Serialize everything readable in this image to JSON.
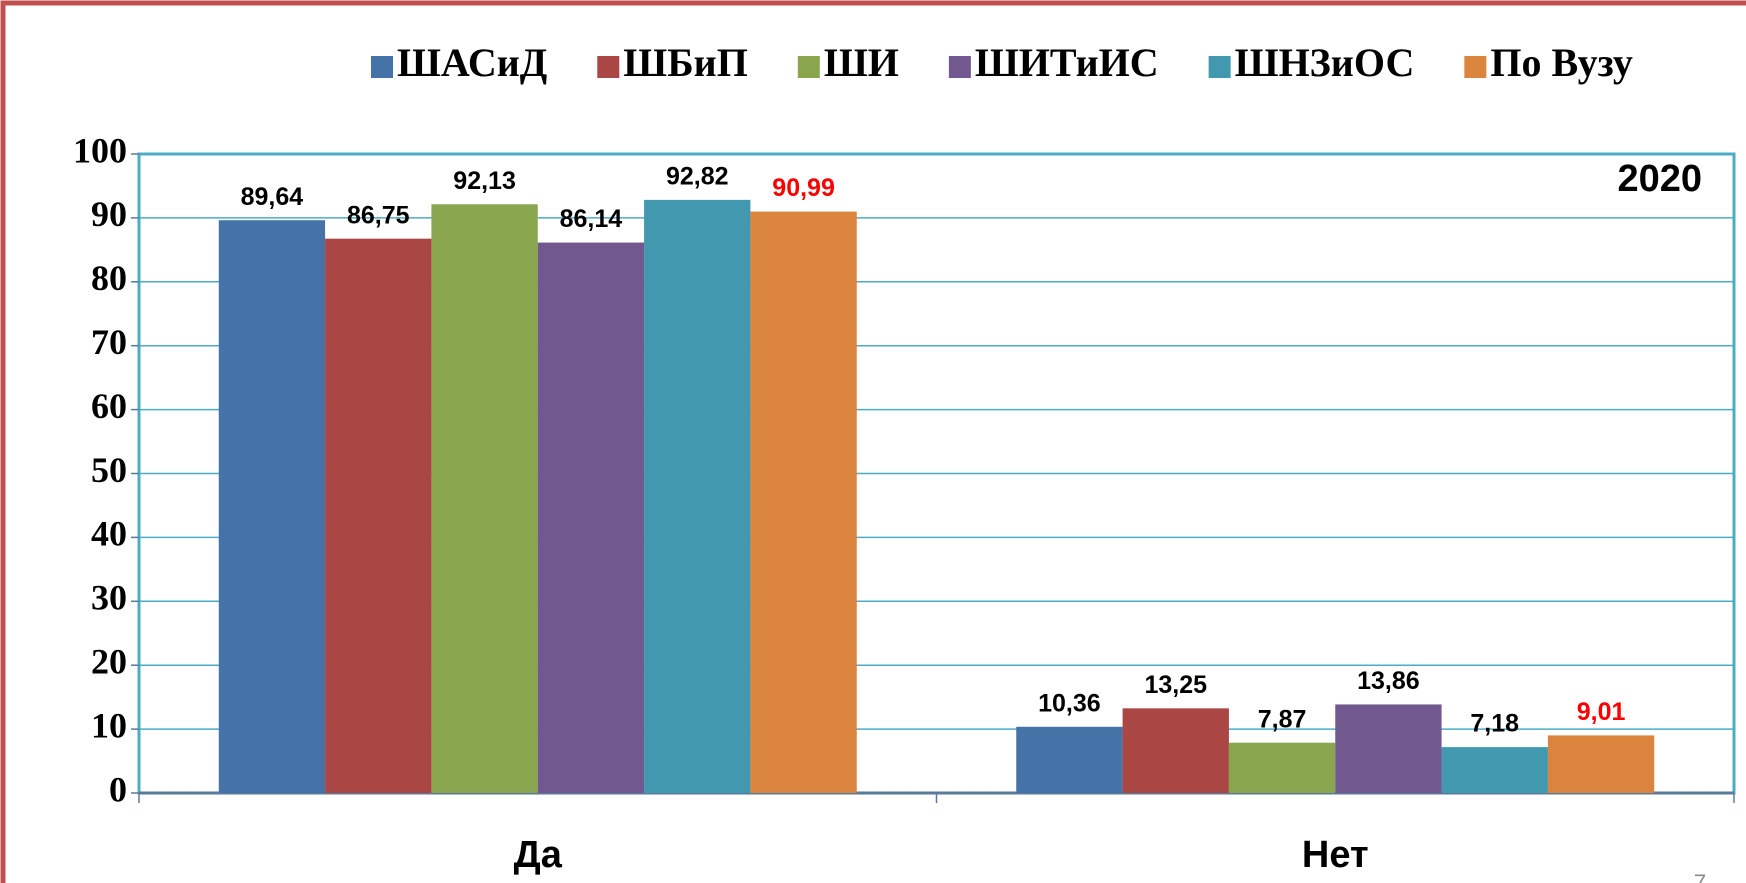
{
  "chart_data": {
    "type": "bar",
    "annotation": "2020",
    "page_number": "7",
    "categories": [
      "Да",
      "Нет"
    ],
    "series": [
      {
        "name": "ШАСиД",
        "color": "#4572a7",
        "values": [
          89.64,
          10.36
        ],
        "value_labels": [
          "89,64",
          "10,36"
        ]
      },
      {
        "name": "ШБиП",
        "color": "#aa4643",
        "values": [
          86.75,
          13.25
        ],
        "value_labels": [
          "86,75",
          "13,25"
        ]
      },
      {
        "name": "ШИ",
        "color": "#89a54e",
        "values": [
          92.13,
          7.87
        ],
        "value_labels": [
          "92,13",
          "7,87"
        ]
      },
      {
        "name": "ШИТиИС",
        "color": "#71588f",
        "values": [
          86.14,
          13.86
        ],
        "value_labels": [
          "86,14",
          "13,86"
        ]
      },
      {
        "name": "ШНЗиОС",
        "color": "#4198af",
        "values": [
          92.82,
          7.18
        ],
        "value_labels": [
          "92,82",
          "7,18"
        ]
      },
      {
        "name": "По Вузу",
        "color": "#db843d",
        "label_color": "#ff0000",
        "values": [
          90.99,
          9.01
        ],
        "value_labels": [
          "90,99",
          "9,01"
        ]
      }
    ],
    "ylim": [
      0,
      100
    ],
    "yticks": [
      0,
      10,
      20,
      30,
      40,
      50,
      60,
      70,
      80,
      90,
      100
    ],
    "grid": true,
    "legend": "top"
  }
}
